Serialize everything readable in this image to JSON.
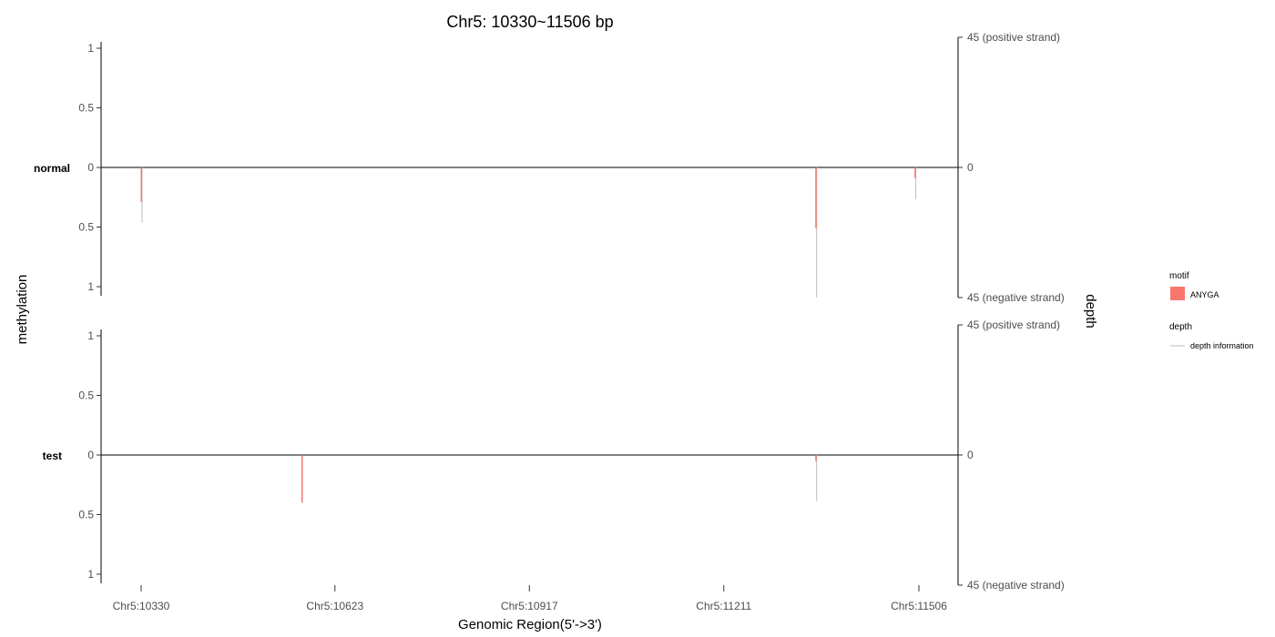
{
  "chart_data": {
    "type": "bar",
    "title": "Chr5: 10330~11506 bp",
    "xlabel": "Genomic Region(5'->3')",
    "ylabel_left": "methylation",
    "ylabel_right": "depth",
    "x_range": [
      10330,
      11506
    ],
    "x_ticks": [
      10330,
      10623,
      10917,
      11211,
      11506
    ],
    "x_tick_labels": [
      "Chr5:10330",
      "Chr5:10623",
      "Chr5:10917",
      "Chr5:11211",
      "Chr5:11506"
    ],
    "methylation_ticks": [
      "1",
      "0.5",
      "0",
      "0.5",
      "1"
    ],
    "depth_ticks": [
      "45 (positive strand)",
      "0",
      "45 (negative strand)"
    ],
    "depth_max": 45,
    "grid": false,
    "legend_position": "right",
    "legend": {
      "motif_title": "motif",
      "motif_label": "ANYGA",
      "motif_color": "#F8766D",
      "depth_title": "depth",
      "depth_label": "depth information",
      "depth_color": "#BDBDBD"
    },
    "panels": [
      {
        "name": "normal",
        "points": [
          {
            "x": 10330,
            "strand": "negative",
            "methylation": 0.29,
            "depth": 19
          },
          {
            "x": 11350,
            "strand": "negative",
            "methylation": 0.51,
            "depth": 45
          },
          {
            "x": 11500,
            "strand": "negative",
            "methylation": 0.09,
            "depth": 11
          }
        ]
      },
      {
        "name": "test",
        "points": [
          {
            "x": 10573,
            "strand": "negative",
            "methylation": 0.4,
            "depth": 0
          },
          {
            "x": 11350,
            "strand": "negative",
            "methylation": 0.05,
            "depth": 16
          }
        ]
      }
    ]
  }
}
